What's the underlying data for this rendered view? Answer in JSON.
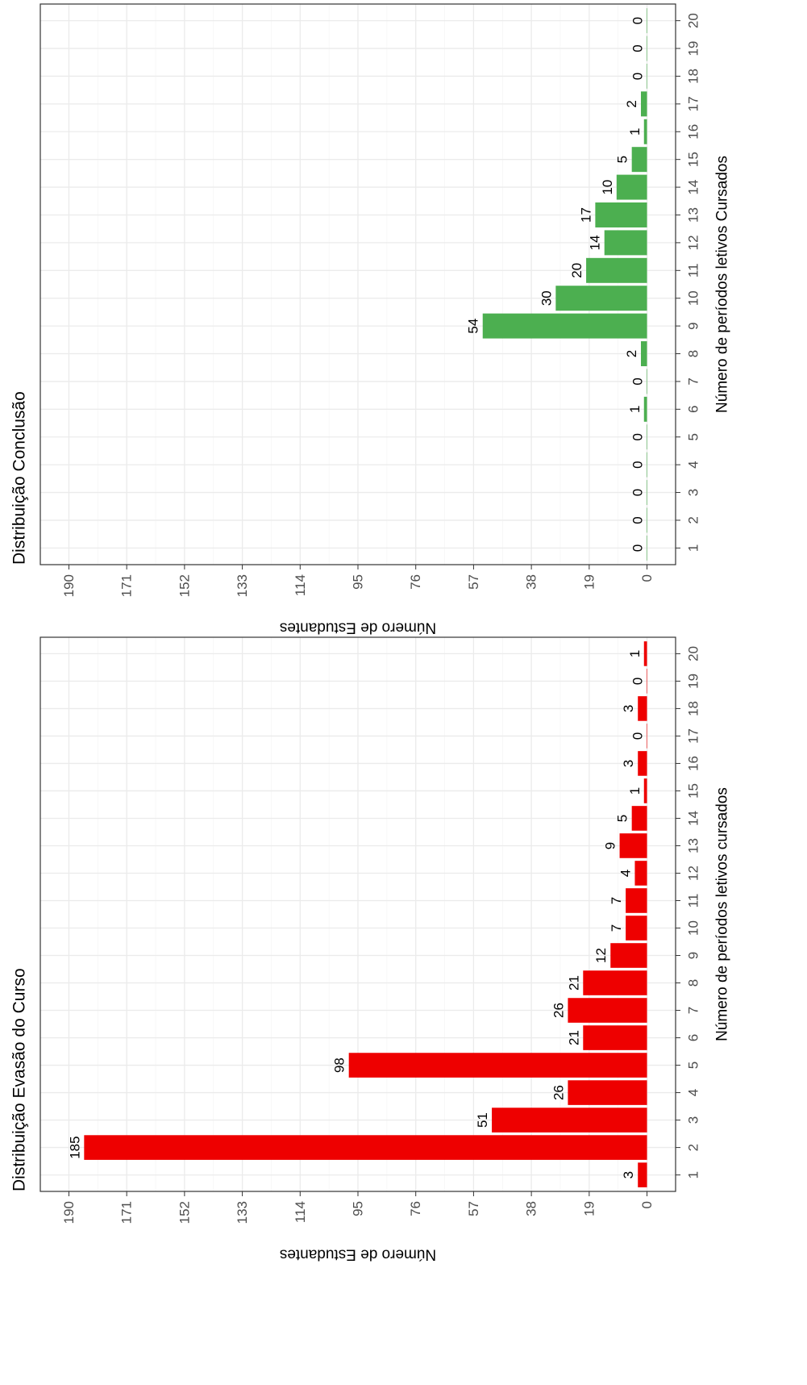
{
  "chart_data": [
    {
      "type": "bar",
      "title": "Distribuição Evasão do Curso",
      "xlabel": "Número de períodos letivos cursados",
      "ylabel": "Número de Estudantes",
      "categories": [
        "1",
        "2",
        "3",
        "4",
        "5",
        "6",
        "7",
        "8",
        "9",
        "10",
        "11",
        "12",
        "13",
        "14",
        "15",
        "16",
        "17",
        "18",
        "19",
        "20"
      ],
      "values": [
        3,
        185,
        51,
        26,
        98,
        21,
        26,
        21,
        12,
        7,
        7,
        4,
        9,
        5,
        1,
        3,
        0,
        3,
        0,
        1
      ],
      "data_labels": [
        "3",
        "185",
        "51",
        "26",
        "98",
        "21",
        "26",
        "21",
        "12",
        "7",
        "7",
        "4",
        "9",
        "5",
        "1",
        "3",
        "0",
        "3",
        "0",
        "1"
      ],
      "yticks": [
        "0",
        "19",
        "38",
        "57",
        "76",
        "95",
        "114",
        "133",
        "152",
        "171",
        "190"
      ],
      "ylim": [
        0,
        190
      ],
      "orientation": "rotated-90",
      "grid": true,
      "color": "#ee0000"
    },
    {
      "type": "bar",
      "title": "Distribuição Conclusão",
      "xlabel": "Número de períodos letivos Cursados",
      "ylabel": "Número de Estudantes",
      "categories": [
        "1",
        "2",
        "3",
        "4",
        "5",
        "6",
        "7",
        "8",
        "9",
        "10",
        "11",
        "12",
        "13",
        "14",
        "15",
        "16",
        "17",
        "18",
        "19",
        "20"
      ],
      "values": [
        0,
        0,
        0,
        0,
        0,
        1,
        0,
        2,
        54,
        30,
        20,
        14,
        17,
        10,
        5,
        1,
        2,
        0,
        0,
        0
      ],
      "data_labels": [
        "0",
        "0",
        "0",
        "0",
        "0",
        "1",
        "0",
        "2",
        "54",
        "30",
        "20",
        "14",
        "17",
        "10",
        "5",
        "1",
        "2",
        "0",
        "0",
        "0"
      ],
      "yticks": [
        "0",
        "19",
        "38",
        "57",
        "76",
        "95",
        "114",
        "133",
        "152",
        "171",
        "190"
      ],
      "ylim": [
        0,
        190
      ],
      "orientation": "rotated-90",
      "grid": true,
      "color": "#4caf50"
    }
  ]
}
